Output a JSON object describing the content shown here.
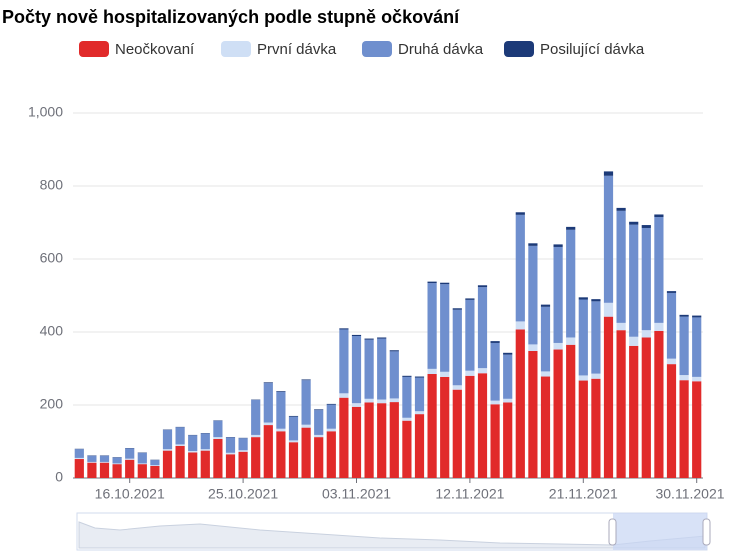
{
  "chart_data": {
    "type": "bar",
    "stacked": true,
    "title": "Počty nově hospitalizovaných podle stupně očkování",
    "categories": [
      null,
      null,
      null,
      null,
      "16.10.2021",
      null,
      null,
      null,
      null,
      null,
      null,
      null,
      null,
      "25.10.2021",
      null,
      null,
      null,
      null,
      null,
      null,
      null,
      null,
      "03.11.2021",
      null,
      null,
      null,
      null,
      null,
      null,
      null,
      null,
      "12.11.2021",
      null,
      null,
      null,
      null,
      null,
      null,
      null,
      null,
      "21.11.2021",
      null,
      null,
      null,
      null,
      null,
      null,
      null,
      null,
      "30.11.2021"
    ],
    "series": [
      {
        "name": "Neočkovaní",
        "color": "#e12a2a",
        "values": [
          52,
          42,
          42,
          38,
          50,
          38,
          33,
          75,
          88,
          70,
          75,
          107,
          65,
          72,
          112,
          145,
          128,
          98,
          138,
          112,
          128,
          220,
          195,
          207,
          205,
          208,
          157,
          175,
          285,
          277,
          242,
          280,
          287,
          202,
          207,
          407,
          348,
          278,
          352,
          365,
          267,
          272,
          442,
          405,
          362,
          385,
          403,
          312,
          268,
          265
        ]
      },
      {
        "name": "První dávka",
        "color": "#cfdff5",
        "values": [
          3,
          2,
          2,
          2,
          3,
          2,
          2,
          4,
          4,
          4,
          4,
          5,
          4,
          4,
          6,
          7,
          7,
          5,
          8,
          6,
          7,
          12,
          10,
          10,
          10,
          10,
          8,
          8,
          14,
          14,
          12,
          14,
          14,
          10,
          10,
          22,
          18,
          14,
          18,
          20,
          14,
          14,
          38,
          20,
          25,
          20,
          22,
          15,
          14,
          12
        ]
      },
      {
        "name": "Druhá dávka",
        "color": "#6f8fce",
        "values": [
          24,
          17,
          17,
          16,
          28,
          29,
          14,
          53,
          47,
          43,
          43,
          45,
          42,
          33,
          96,
          108,
          101,
          65,
          122,
          68,
          66,
          175,
          184,
          162,
          167,
          129,
          112,
          92,
          235,
          240,
          207,
          194,
          222,
          158,
          121,
          292,
          270,
          177,
          263,
          295,
          208,
          198,
          348,
          307,
          307,
          280,
          290,
          180,
          160,
          163
        ]
      },
      {
        "name": "Posilující dávka",
        "color": "#1c3a78",
        "values": [
          1,
          1,
          1,
          1,
          1,
          1,
          1,
          1,
          1,
          1,
          1,
          1,
          1,
          1,
          1,
          2,
          2,
          2,
          2,
          2,
          2,
          3,
          3,
          3,
          3,
          3,
          3,
          3,
          4,
          4,
          4,
          4,
          5,
          5,
          5,
          7,
          7,
          6,
          7,
          8,
          6,
          6,
          12,
          8,
          8,
          8,
          7,
          5,
          5,
          5
        ]
      }
    ],
    "ylim": [
      0,
      1000
    ],
    "yticks": [
      0,
      200,
      400,
      600,
      800,
      {
        "value": 1000,
        "label": "1,000"
      }
    ],
    "grid": true,
    "legend": "top"
  }
}
